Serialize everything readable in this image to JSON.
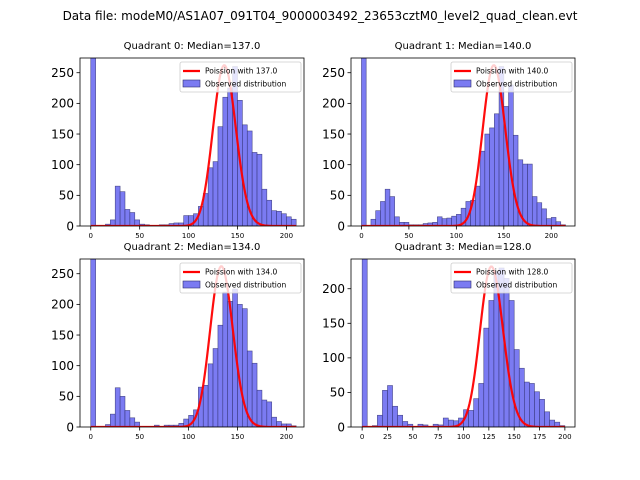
{
  "chart_data": {
    "suptitle": "Data file: modeM0/AS1A07_091T04_9000003492_23653cztM0_level2_quad_clean.evt",
    "colors": {
      "bar_fill": "#7b7bf2",
      "bar_edge": "#2e2e6e",
      "poisson_line": "#ff0000"
    },
    "legend_placement": "upper right",
    "bin_width": 5,
    "subplots": [
      {
        "type": "bar",
        "title": "Quadrant 0: Median=137.0",
        "legend": [
          "Poission with 137.0",
          "Observed distribution"
        ],
        "median": 137.0,
        "xlim": [
          -11,
          218
        ],
        "ylim": [
          0,
          274
        ],
        "xticks": [
          0,
          50,
          100,
          150,
          200
        ],
        "yticks": [
          0,
          50,
          100,
          150,
          200,
          250
        ],
        "bin_starts": [
          0,
          5,
          10,
          15,
          20,
          25,
          30,
          35,
          40,
          45,
          50,
          55,
          60,
          65,
          70,
          75,
          80,
          85,
          90,
          95,
          100,
          105,
          110,
          115,
          120,
          125,
          130,
          135,
          140,
          145,
          150,
          155,
          160,
          165,
          170,
          175,
          180,
          185,
          190,
          195,
          200,
          205
        ],
        "values": [
          600,
          0,
          0,
          3,
          10,
          65,
          56,
          27,
          22,
          10,
          3,
          2,
          1,
          1,
          2,
          2,
          4,
          5,
          5,
          17,
          17,
          20,
          32,
          53,
          95,
          105,
          162,
          210,
          225,
          260,
          205,
          165,
          155,
          120,
          117,
          60,
          42,
          25,
          24,
          20,
          15,
          11
        ],
        "poisson_peak": 262
      },
      {
        "type": "bar",
        "title": "Quadrant 1: Median=140.0",
        "legend": [
          "Poission with 140.0",
          "Observed distribution"
        ],
        "median": 140.0,
        "xlim": [
          -11,
          225
        ],
        "ylim": [
          0,
          274
        ],
        "xticks": [
          0,
          50,
          100,
          150,
          200
        ],
        "yticks": [
          0,
          50,
          100,
          150,
          200,
          250
        ],
        "bin_starts": [
          0,
          5,
          10,
          15,
          20,
          25,
          30,
          35,
          40,
          45,
          50,
          55,
          60,
          65,
          70,
          75,
          80,
          85,
          90,
          95,
          100,
          105,
          110,
          115,
          120,
          125,
          130,
          135,
          140,
          145,
          150,
          155,
          160,
          165,
          170,
          175,
          180,
          185,
          190,
          195,
          200,
          205,
          210
        ],
        "values": [
          600,
          0,
          11,
          25,
          40,
          60,
          48,
          15,
          6,
          6,
          2,
          2,
          2,
          4,
          5,
          6,
          15,
          12,
          13,
          16,
          19,
          29,
          40,
          42,
          65,
          122,
          150,
          160,
          183,
          260,
          195,
          230,
          148,
          108,
          101,
          101,
          48,
          38,
          28,
          12,
          14,
          7,
          2
        ],
        "poisson_peak": 262
      },
      {
        "type": "bar",
        "title": "Quadrant 2: Median=134.0",
        "legend": [
          "Poission with 134.0",
          "Observed distribution"
        ],
        "median": 134.0,
        "xlim": [
          -11,
          218
        ],
        "ylim": [
          0,
          274
        ],
        "xticks": [
          0,
          50,
          100,
          150,
          200
        ],
        "yticks": [
          0,
          50,
          100,
          150,
          200,
          250
        ],
        "bin_starts": [
          0,
          5,
          10,
          15,
          20,
          25,
          30,
          35,
          40,
          45,
          50,
          55,
          60,
          65,
          70,
          75,
          80,
          85,
          90,
          95,
          100,
          105,
          110,
          115,
          120,
          125,
          130,
          135,
          140,
          145,
          150,
          155,
          160,
          165,
          170,
          175,
          180,
          185,
          190,
          195,
          200,
          205
        ],
        "values": [
          600,
          0,
          0,
          4,
          21,
          64,
          50,
          27,
          15,
          8,
          1,
          1,
          1,
          3,
          1,
          3,
          3,
          3,
          6,
          13,
          19,
          28,
          65,
          68,
          103,
          128,
          166,
          220,
          205,
          225,
          200,
          193,
          124,
          104,
          60,
          44,
          41,
          16,
          9,
          5,
          5,
          2
        ],
        "poisson_peak": 262
      },
      {
        "type": "bar",
        "title": "Quadrant 3: Median=128.0",
        "legend": [
          "Poission with 128.0",
          "Observed distribution"
        ],
        "median": 128.0,
        "xlim": [
          -11,
          210
        ],
        "ylim": [
          0,
          243
        ],
        "xticks": [
          0,
          25,
          50,
          75,
          100,
          125,
          150,
          175,
          200
        ],
        "yticks": [
          0,
          50,
          100,
          150,
          200
        ],
        "bin_starts": [
          0,
          5,
          10,
          15,
          20,
          25,
          30,
          35,
          40,
          45,
          50,
          55,
          60,
          65,
          70,
          75,
          80,
          85,
          90,
          95,
          100,
          105,
          110,
          115,
          120,
          125,
          130,
          135,
          140,
          145,
          150,
          155,
          160,
          165,
          170,
          175,
          180,
          185,
          190,
          195
        ],
        "values": [
          600,
          0,
          2,
          17,
          53,
          60,
          30,
          17,
          8,
          4,
          1,
          4,
          3,
          1,
          4,
          3,
          13,
          10,
          9,
          13,
          25,
          24,
          41,
          63,
          143,
          183,
          225,
          230,
          215,
          183,
          112,
          85,
          65,
          63,
          51,
          40,
          22,
          10,
          7,
          2
        ],
        "poisson_peak": 232
      }
    ]
  }
}
